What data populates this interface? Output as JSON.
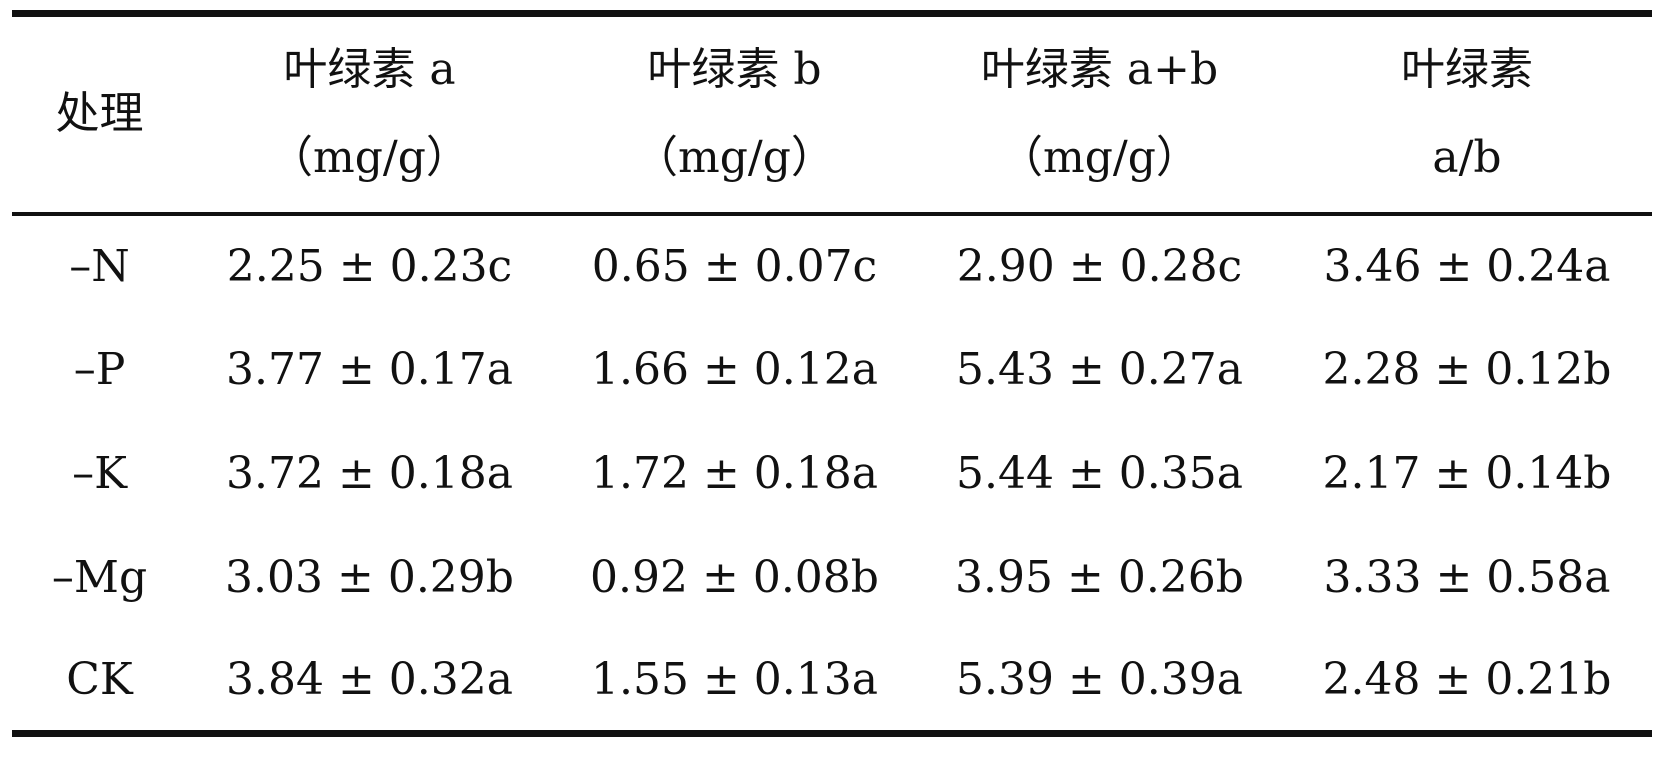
{
  "table": {
    "headers": {
      "treatment": "处理",
      "chl_a": {
        "line1": "叶绿素 a",
        "line2": "（mg/g）"
      },
      "chl_b": {
        "line1": "叶绿素 b",
        "line2": "（mg/g）"
      },
      "chl_ab": {
        "line1": "叶绿素 a+b",
        "line2": "（mg/g）"
      },
      "chl_ratio": {
        "line1": "叶绿素",
        "line2": "a/b"
      }
    },
    "rows": [
      {
        "treatment": "–N",
        "chl_a": "2.25 ± 0.23c",
        "chl_b": "0.65 ± 0.07c",
        "chl_ab": "2.90 ± 0.28c",
        "chl_ratio": "3.46 ± 0.24a"
      },
      {
        "treatment": "–P",
        "chl_a": "3.77 ± 0.17a",
        "chl_b": "1.66 ± 0.12a",
        "chl_ab": "5.43 ± 0.27a",
        "chl_ratio": "2.28 ± 0.12b"
      },
      {
        "treatment": "–K",
        "chl_a": "3.72 ± 0.18a",
        "chl_b": "1.72 ± 0.18a",
        "chl_ab": "5.44 ± 0.35a",
        "chl_ratio": "2.17 ± 0.14b"
      },
      {
        "treatment": "–Mg",
        "chl_a": "3.03 ± 0.29b",
        "chl_b": "0.92 ± 0.08b",
        "chl_ab": "3.95 ± 0.26b",
        "chl_ratio": "3.33 ± 0.58a"
      },
      {
        "treatment": "CK",
        "chl_a": "3.84 ± 0.32a",
        "chl_b": "1.55 ± 0.13a",
        "chl_ab": "5.39 ± 0.39a",
        "chl_ratio": "2.48 ± 0.21b"
      }
    ]
  }
}
